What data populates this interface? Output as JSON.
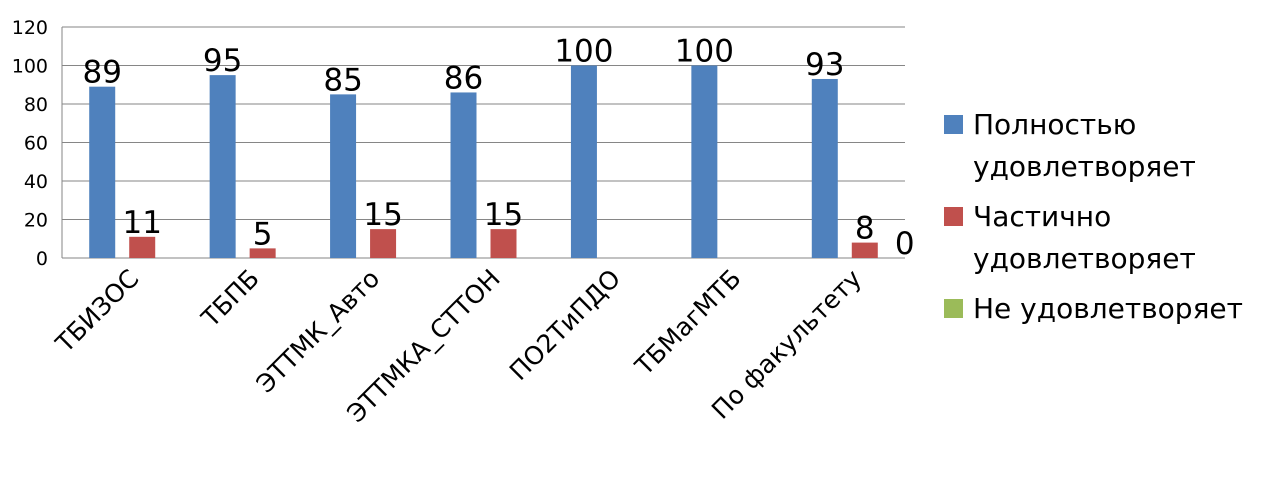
{
  "chart_data": {
    "type": "bar",
    "categories": [
      "ТБИЗОС",
      "ТБПБ",
      "ЭТТМК_Авто",
      "ЭТТМКА_СТТОН",
      "ПО2ТиПДО",
      "ТБМагМТБ",
      "По факультету"
    ],
    "series": [
      {
        "name": "Полностью удовлетворяет",
        "color": "#4F81BD",
        "values": [
          89,
          95,
          85,
          86,
          100,
          100,
          93
        ]
      },
      {
        "name": "Частично удовлетворяет",
        "color": "#C0504D",
        "values": [
          11,
          5,
          15,
          15,
          null,
          null,
          8
        ]
      },
      {
        "name": "Не удовлетворяет",
        "color": "#9BBB59",
        "values": [
          null,
          null,
          null,
          null,
          null,
          null,
          0
        ]
      }
    ],
    "yticks": [
      "0",
      "20",
      "40",
      "60",
      "80",
      "100",
      "120"
    ],
    "ylim": [
      0,
      120
    ],
    "grid": true,
    "legend_position": "right"
  },
  "legend": [
    {
      "label": "Полностью удовлетворяет",
      "color": "#4F81BD"
    },
    {
      "label": "Частично удовлетворяет",
      "color": "#C0504D"
    },
    {
      "label": "Не удовлетворяет",
      "color": "#9BBB59"
    }
  ]
}
